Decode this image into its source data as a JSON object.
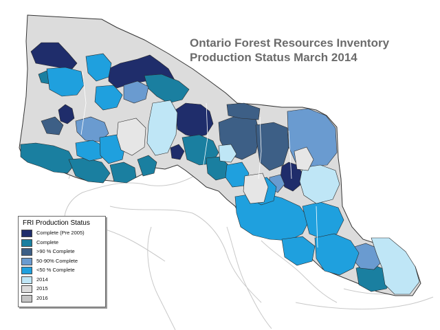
{
  "title": {
    "line1": "Ontario Forest Resources Inventory",
    "line2": "Production Status March 2014"
  },
  "legend": {
    "title": "FRI Production Status",
    "items": [
      {
        "label": "Complete (Pre 2005)",
        "color": "#1f2d6b"
      },
      {
        "label": "Complete",
        "color": "#1a7fa0"
      },
      {
        "label": ">90 % Complete",
        "color": "#3d5f86"
      },
      {
        "label": "50-90% Complete",
        "color": "#6a9bd0"
      },
      {
        "label": "<50 % Complete",
        "color": "#1fa0de"
      },
      {
        "label": "2014",
        "color": "#bfe6f6"
      },
      {
        "label": "2015",
        "color": "#dcdcdc"
      },
      {
        "label": "2016",
        "color": "#c4c4c4"
      }
    ]
  },
  "colors": {
    "outline": "#333333",
    "lake_lines": "#bdbdbd",
    "background": "#ffffff"
  }
}
